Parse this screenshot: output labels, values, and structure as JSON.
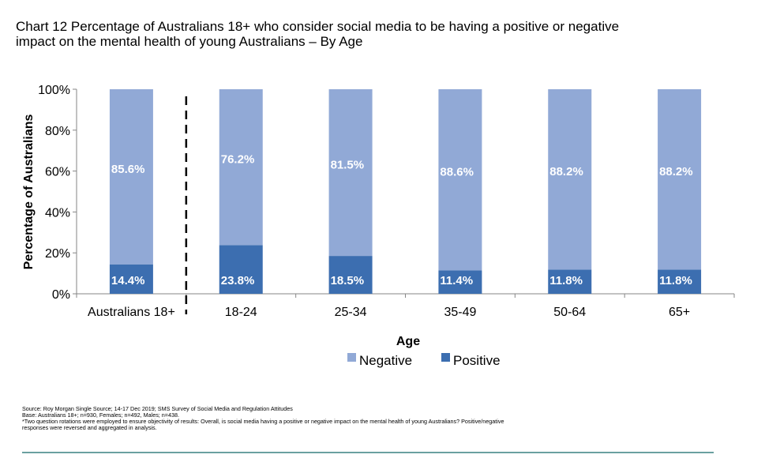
{
  "title_line1": "Chart 12 Percentage of Australians 18+ who consider social media to be having a positive or negative",
  "title_line2": "impact on the mental health of young Australians – By Age",
  "chart_data": {
    "type": "bar",
    "stacked": true,
    "categories": [
      "Australians 18+",
      "18-24",
      "25-34",
      "35-49",
      "50-64",
      "65+"
    ],
    "series": [
      {
        "name": "Positive",
        "values": [
          14.4,
          23.8,
          18.5,
          11.4,
          11.8,
          11.8
        ],
        "labels": [
          "14.4%",
          "23.8%",
          "18.5%",
          "11.4%",
          "11.8%",
          "11.8%"
        ],
        "color": "#3c6eb0"
      },
      {
        "name": "Negative",
        "values": [
          85.6,
          76.2,
          81.5,
          88.6,
          88.2,
          88.2
        ],
        "labels": [
          "85.6%",
          "76.2%",
          "81.5%",
          "88.6%",
          "88.2%",
          "88.2%"
        ],
        "color": "#91a9d6"
      }
    ],
    "xlabel": "Age",
    "ylabel": "Percentage of Australians",
    "ylim": [
      0,
      100
    ],
    "yticks": [
      "0%",
      "20%",
      "40%",
      "60%",
      "80%",
      "100%"
    ],
    "legend_position": "bottom",
    "grid": false
  },
  "footnote": {
    "line1": "Source: Roy Morgan Single Source; 14-17 Dec 2019; SMS Survey of Social Media and Regulation Attitudes",
    "line2": "Base: Australians 18+; n=930, Females; n=492, Males; n=438.",
    "line3": "*Two question rotations were employed to ensure objectivity of results: Overall, is social media having a positive or negative impact on the mental health of young Australians? Positive/negative",
    "line4": "responses were reversed and aggregated in analysis."
  }
}
